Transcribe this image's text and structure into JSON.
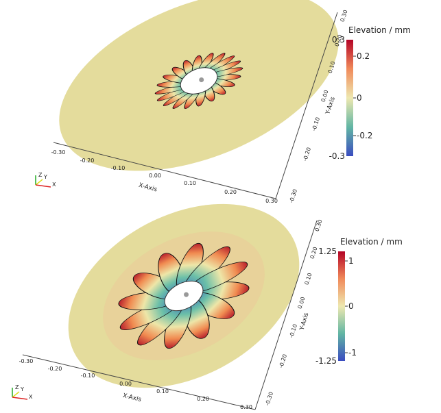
{
  "panels": [
    {
      "colorbar": {
        "title": "Elevation / mm",
        "max_label": "0.3",
        "min_label": "-0.3",
        "ticks": [
          "0.2",
          "0",
          "-0.2"
        ]
      },
      "x_axis": {
        "title": "X-Axis",
        "ticks": [
          "-0.30",
          "-0.20",
          "-0.10",
          "0.00",
          "0.10",
          "0.20",
          "0.30"
        ]
      },
      "y_axis": {
        "title": "Y-Axis",
        "ticks": [
          "-0.30",
          "-0.20",
          "-0.10",
          "0.00",
          "0.10",
          "0.20",
          "0.30"
        ]
      },
      "triad": [
        "Z",
        "Y",
        "X"
      ]
    },
    {
      "colorbar": {
        "title": "Elevation / mm",
        "max_label": "1.25",
        "min_label": "-1.25",
        "ticks": [
          "1",
          "0",
          "-1"
        ]
      },
      "x_axis": {
        "title": "X-Axis",
        "ticks": [
          "-0.30",
          "-0.20",
          "-0.10",
          "0.00",
          "0.10",
          "0.20",
          "0.30"
        ]
      },
      "y_axis": {
        "title": "Y-Axis",
        "ticks": [
          "-0.30",
          "-0.20",
          "-0.10",
          "0.00",
          "0.10",
          "0.20",
          "0.30"
        ]
      },
      "triad": [
        "Z",
        "Y",
        "X"
      ]
    }
  ]
}
